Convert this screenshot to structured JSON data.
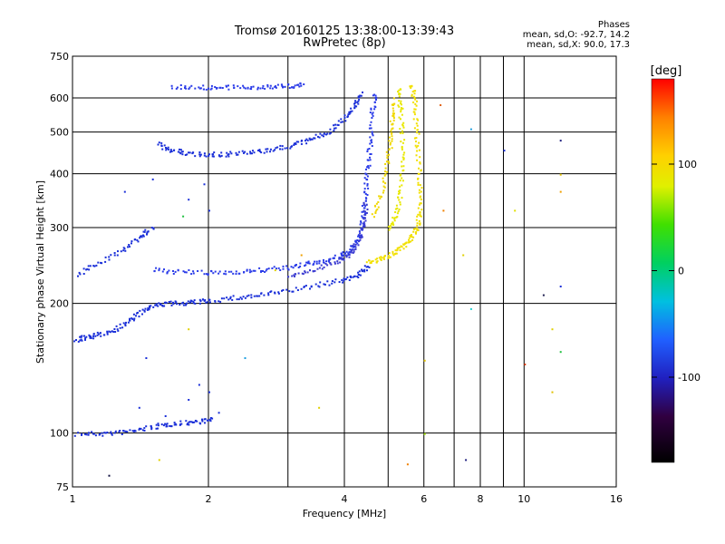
{
  "chart_data": {
    "type": "scatter",
    "title": "Tromsø 20160125 13:38:00-13:39:43",
    "subtitle": "RwPretec (8p)",
    "xlabel": "Frequency [MHz]",
    "ylabel": "Stationary phase Virtual Height [km]",
    "xscale": "log",
    "yscale": "log",
    "xlim": [
      1,
      16
    ],
    "ylim": [
      75,
      750
    ],
    "x_ticks": [
      1,
      2,
      4,
      6,
      8,
      10,
      16
    ],
    "x_tick_labels": [
      "1",
      "2",
      "4",
      "6",
      "8",
      "10",
      "16"
    ],
    "x_minor_ticks": [
      3,
      5,
      7,
      9
    ],
    "y_ticks": [
      75,
      100,
      200,
      300,
      400,
      500,
      600,
      750
    ],
    "y_tick_labels": [
      "75",
      "100",
      "200",
      "300",
      "400",
      "500",
      "600",
      "750"
    ],
    "grid": true,
    "stats": {
      "heading": "Phases",
      "line_o": "mean, sd,O: -92.7, 14.2",
      "line_x": "mean, sd,X:  90.0, 17.3"
    },
    "colorbar": {
      "label": "[deg]",
      "min": -180,
      "max": 180,
      "ticks": [
        100,
        0,
        -100
      ],
      "tick_labels": [
        "100",
        "0",
        "-100"
      ]
    },
    "traces": [
      {
        "phase": -100,
        "color": "#1a2fd8",
        "points": [
          [
            1.02,
            100
          ],
          [
            1.15,
            100
          ],
          [
            1.3,
            101
          ],
          [
            1.45,
            103
          ],
          [
            1.6,
            105
          ],
          [
            1.75,
            106
          ],
          [
            1.9,
            107
          ],
          [
            2.05,
            108
          ]
        ]
      },
      {
        "phase": -100,
        "color": "#1a2fd8",
        "points": [
          [
            1.01,
            165
          ],
          [
            1.08,
            168
          ],
          [
            1.15,
            170
          ],
          [
            1.25,
            176
          ],
          [
            1.35,
            185
          ],
          [
            1.45,
            195
          ],
          [
            1.55,
            200
          ],
          [
            1.7,
            201
          ],
          [
            1.85,
            202
          ],
          [
            2.0,
            204
          ],
          [
            2.3,
            207
          ],
          [
            2.6,
            210
          ],
          [
            3.0,
            215
          ],
          [
            3.5,
            222
          ],
          [
            4.0,
            228
          ],
          [
            4.3,
            235
          ],
          [
            4.5,
            245
          ]
        ]
      },
      {
        "phase": -100,
        "color": "#2a3be8",
        "points": [
          [
            1.5,
            240
          ],
          [
            1.7,
            238
          ],
          [
            2.0,
            236
          ],
          [
            2.3,
            238
          ],
          [
            2.6,
            240
          ],
          [
            3.0,
            243
          ],
          [
            3.3,
            248
          ],
          [
            3.6,
            252
          ],
          [
            3.9,
            258
          ],
          [
            4.1,
            265
          ],
          [
            4.25,
            280
          ],
          [
            4.35,
            300
          ],
          [
            4.4,
            330
          ],
          [
            4.45,
            370
          ],
          [
            4.5,
            420
          ],
          [
            4.55,
            480
          ],
          [
            4.6,
            560
          ],
          [
            4.65,
            620
          ]
        ]
      },
      {
        "phase": -100,
        "color": "#3a3ad0",
        "points": [
          [
            3.0,
            232
          ],
          [
            3.4,
            240
          ],
          [
            3.8,
            250
          ],
          [
            4.1,
            262
          ],
          [
            4.3,
            280
          ],
          [
            4.4,
            310
          ],
          [
            4.45,
            350
          ]
        ]
      },
      {
        "phase": -100,
        "color": "#1a2fd8",
        "points": [
          [
            1.55,
            470
          ],
          [
            1.65,
            455
          ],
          [
            1.8,
            448
          ],
          [
            2.0,
            445
          ],
          [
            2.2,
            446
          ],
          [
            2.5,
            450
          ],
          [
            2.8,
            458
          ],
          [
            3.1,
            470
          ],
          [
            3.4,
            485
          ],
          [
            3.7,
            505
          ],
          [
            4.0,
            540
          ],
          [
            4.2,
            580
          ],
          [
            4.35,
            620
          ]
        ]
      },
      {
        "phase": -100,
        "color": "#2a3be8",
        "points": [
          [
            1.65,
            640
          ],
          [
            1.9,
            638
          ],
          [
            2.1,
            636
          ],
          [
            2.4,
            638
          ],
          [
            2.7,
            640
          ],
          [
            3.0,
            642
          ],
          [
            3.25,
            645
          ]
        ]
      },
      {
        "phase": -100,
        "color": "#1a2fd8",
        "points": [
          [
            1.02,
            235
          ],
          [
            1.15,
            250
          ],
          [
            1.3,
            270
          ],
          [
            1.42,
            290
          ],
          [
            1.5,
            300
          ]
        ]
      },
      {
        "phase": 100,
        "color": "#f2e000",
        "points": [
          [
            4.5,
            250
          ],
          [
            4.8,
            255
          ],
          [
            5.1,
            262
          ],
          [
            5.4,
            272
          ],
          [
            5.6,
            285
          ],
          [
            5.8,
            300
          ],
          [
            5.85,
            330
          ],
          [
            5.85,
            380
          ],
          [
            5.8,
            450
          ],
          [
            5.75,
            520
          ],
          [
            5.7,
            600
          ],
          [
            5.6,
            650
          ]
        ]
      },
      {
        "phase": 100,
        "color": "#e8e800",
        "points": [
          [
            5.0,
            300
          ],
          [
            5.2,
            320
          ],
          [
            5.3,
            360
          ],
          [
            5.35,
            420
          ],
          [
            5.35,
            500
          ],
          [
            5.3,
            580
          ],
          [
            5.25,
            640
          ]
        ]
      },
      {
        "phase": 100,
        "color": "#f0d800",
        "points": [
          [
            4.6,
            320
          ],
          [
            4.8,
            360
          ],
          [
            4.95,
            420
          ],
          [
            5.05,
            480
          ],
          [
            5.1,
            540
          ],
          [
            5.15,
            600
          ]
        ]
      }
    ],
    "scatter_points": [
      {
        "x": 1.8,
        "y": 120,
        "phase": -100,
        "color": "#1a2fd8"
      },
      {
        "x": 1.9,
        "y": 130,
        "phase": -100,
        "color": "#1a2fd8"
      },
      {
        "x": 2.0,
        "y": 125,
        "phase": -100,
        "color": "#1a2fd8"
      },
      {
        "x": 1.6,
        "y": 110,
        "phase": -100,
        "color": "#1a2fd8"
      },
      {
        "x": 1.4,
        "y": 115,
        "phase": -100,
        "color": "#1a2fd8"
      },
      {
        "x": 2.1,
        "y": 112,
        "phase": -100,
        "color": "#1a2fd8"
      },
      {
        "x": 1.95,
        "y": 380,
        "phase": -100,
        "color": "#1a2fd8"
      },
      {
        "x": 2.0,
        "y": 330,
        "phase": -100,
        "color": "#1a2fd8"
      },
      {
        "x": 1.8,
        "y": 350,
        "phase": -100,
        "color": "#1a2fd8"
      },
      {
        "x": 1.3,
        "y": 365,
        "phase": -100,
        "color": "#1a2fd8"
      },
      {
        "x": 1.5,
        "y": 390,
        "phase": -100,
        "color": "#1a2fd8"
      },
      {
        "x": 1.75,
        "y": 320,
        "phase": 20,
        "color": "#20c040"
      },
      {
        "x": 6.5,
        "y": 580,
        "phase": 150,
        "color": "#e06010"
      },
      {
        "x": 7.6,
        "y": 510,
        "phase": -80,
        "color": "#20a0e0"
      },
      {
        "x": 9.0,
        "y": 455,
        "phase": -90,
        "color": "#1a2fd8"
      },
      {
        "x": 12.0,
        "y": 480,
        "phase": -120,
        "color": "#202080"
      },
      {
        "x": 12.0,
        "y": 400,
        "phase": 100,
        "color": "#e0c000"
      },
      {
        "x": 12.0,
        "y": 365,
        "phase": 120,
        "color": "#f0a000"
      },
      {
        "x": 6.6,
        "y": 330,
        "phase": 130,
        "color": "#f08000"
      },
      {
        "x": 7.3,
        "y": 260,
        "phase": 110,
        "color": "#e0d000"
      },
      {
        "x": 9.5,
        "y": 330,
        "phase": 90,
        "color": "#e0e000"
      },
      {
        "x": 12.0,
        "y": 220,
        "phase": -110,
        "color": "#1a2fd8"
      },
      {
        "x": 11.0,
        "y": 210,
        "phase": -140,
        "color": "#202050"
      },
      {
        "x": 7.6,
        "y": 195,
        "phase": -30,
        "color": "#20d0d0"
      },
      {
        "x": 10.0,
        "y": 145,
        "phase": 150,
        "color": "#e04000"
      },
      {
        "x": 11.5,
        "y": 175,
        "phase": 100,
        "color": "#e0d000"
      },
      {
        "x": 12.0,
        "y": 155,
        "phase": 20,
        "color": "#20c040"
      },
      {
        "x": 6.0,
        "y": 148,
        "phase": 110,
        "color": "#e0c000"
      },
      {
        "x": 5.5,
        "y": 85,
        "phase": 140,
        "color": "#f08000"
      },
      {
        "x": 7.4,
        "y": 87,
        "phase": -120,
        "color": "#202080"
      },
      {
        "x": 1.2,
        "y": 80,
        "phase": -140,
        "color": "#101040"
      },
      {
        "x": 1.55,
        "y": 87,
        "phase": 100,
        "color": "#e0d000"
      },
      {
        "x": 11.5,
        "y": 125,
        "phase": 110,
        "color": "#e0c000"
      },
      {
        "x": 6.0,
        "y": 100,
        "phase": 60,
        "color": "#a0e000"
      },
      {
        "x": 3.5,
        "y": 115,
        "phase": 100,
        "color": "#e0d000"
      },
      {
        "x": 3.2,
        "y": 260,
        "phase": 120,
        "color": "#f0a000"
      },
      {
        "x": 2.8,
        "y": 240,
        "phase": 100,
        "color": "#e0d000"
      },
      {
        "x": 1.8,
        "y": 175,
        "phase": 100,
        "color": "#e0d000"
      },
      {
        "x": 1.45,
        "y": 150,
        "phase": -100,
        "color": "#1a2fd8"
      },
      {
        "x": 2.4,
        "y": 150,
        "phase": -80,
        "color": "#20a0e0"
      }
    ]
  }
}
